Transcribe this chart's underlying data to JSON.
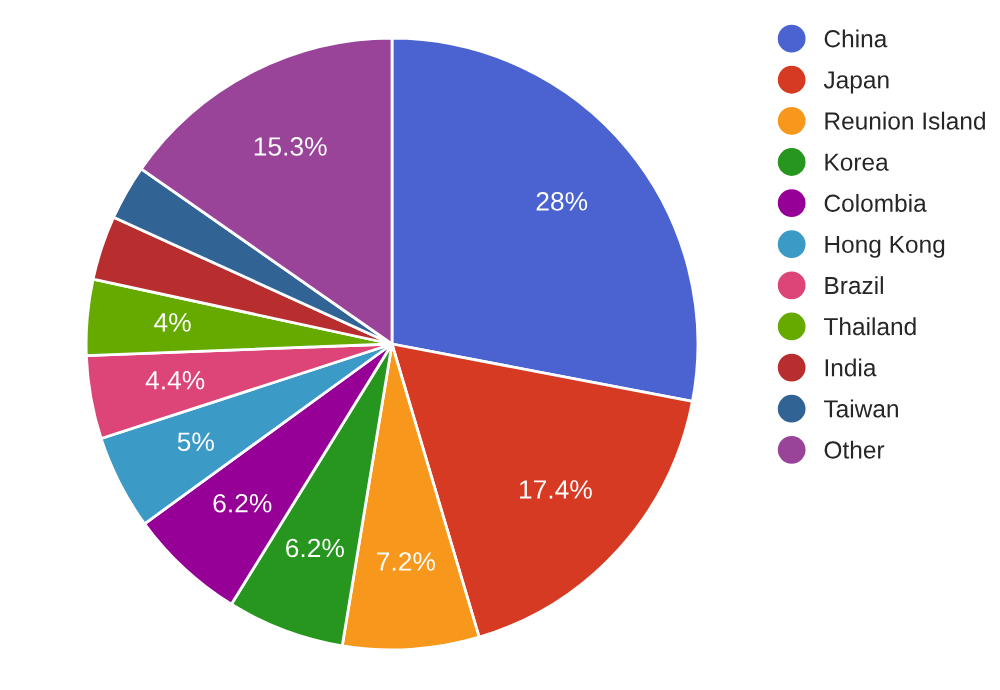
{
  "chart_data": {
    "type": "pie",
    "categories": [
      "China",
      "Japan",
      "Reunion Island",
      "Korea",
      "Colombia",
      "Hong Kong",
      "Brazil",
      "Thailand",
      "India",
      "Taiwan",
      "Other"
    ],
    "values": [
      28,
      17.4,
      7.2,
      6.2,
      6.2,
      5,
      4.4,
      4,
      3.4,
      2.9,
      15.3
    ],
    "value_labels": [
      "28%",
      "17.4%",
      "7.2%",
      "6.2%",
      "6.2%",
      "5%",
      "4.4%",
      "4%",
      null,
      null,
      "15.3%"
    ],
    "colors": [
      "#4a63d0",
      "#d63a22",
      "#f7971c",
      "#27961f",
      "#960096",
      "#3c9ac6",
      "#dd4477",
      "#66aa00",
      "#b82e2e",
      "#316395",
      "#994499"
    ],
    "legend": "right"
  }
}
